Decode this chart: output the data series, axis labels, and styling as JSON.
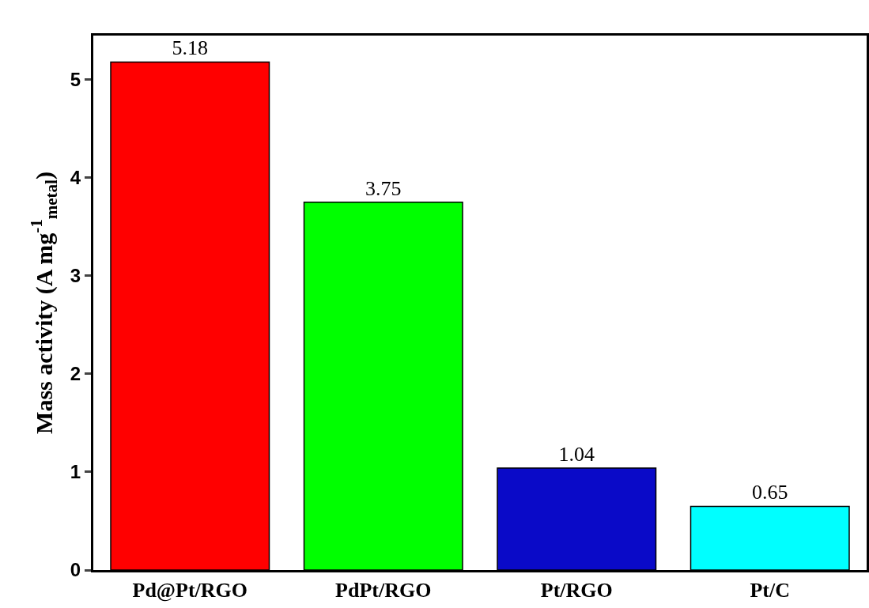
{
  "chart_data": {
    "type": "bar",
    "ylabel": "Mass activity (A mg$^{-1}$$_{metal}$)",
    "categories": [
      "Pd@Pt/RGO",
      "PdPt/RGO",
      "Pt/RGO",
      "Pt/C"
    ],
    "values": [
      5.18,
      3.75,
      1.04,
      0.65
    ],
    "colors": [
      "#ff0000",
      "#00ff00",
      "#0a0ac8",
      "#00ffff"
    ],
    "ylim": [
      0,
      5.45
    ],
    "yticks": [
      0,
      1,
      2,
      3,
      4,
      5
    ],
    "data_labels": true,
    "grid": false
  }
}
